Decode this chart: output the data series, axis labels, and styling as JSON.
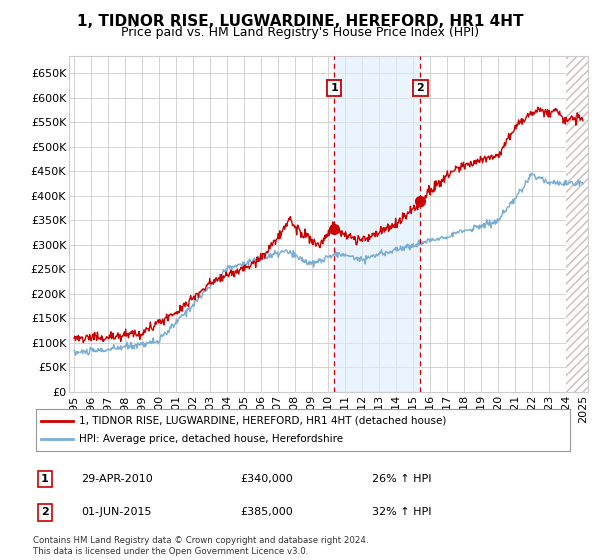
{
  "title": "1, TIDNOR RISE, LUGWARDINE, HEREFORD, HR1 4HT",
  "subtitle": "Price paid vs. HM Land Registry's House Price Index (HPI)",
  "yticks": [
    0,
    50000,
    100000,
    150000,
    200000,
    250000,
    300000,
    350000,
    400000,
    450000,
    500000,
    550000,
    600000,
    650000
  ],
  "ytick_labels": [
    "£0",
    "£50K",
    "£100K",
    "£150K",
    "£200K",
    "£250K",
    "£300K",
    "£350K",
    "£400K",
    "£450K",
    "£500K",
    "£550K",
    "£600K",
    "£650K"
  ],
  "ylim": [
    0,
    685000
  ],
  "xlim_start": 1994.7,
  "xlim_end": 2025.3,
  "xticks": [
    1995,
    1996,
    1997,
    1998,
    1999,
    2000,
    2001,
    2002,
    2003,
    2004,
    2005,
    2006,
    2007,
    2008,
    2009,
    2010,
    2011,
    2012,
    2013,
    2014,
    2015,
    2016,
    2017,
    2018,
    2019,
    2020,
    2021,
    2022,
    2023,
    2024,
    2025
  ],
  "property_color": "#cc0000",
  "hpi_color": "#7aaed4",
  "transaction1_date": 2010.33,
  "transaction1_price": 340000,
  "transaction1_label": "1",
  "transaction1_pct": "26%",
  "transaction1_date_str": "29-APR-2010",
  "transaction1_price_str": "£340,000",
  "transaction2_date": 2015.42,
  "transaction2_price": 385000,
  "transaction2_label": "2",
  "transaction2_pct": "32%",
  "transaction2_date_str": "01-JUN-2015",
  "transaction2_price_str": "£385,000",
  "legend_property": "1, TIDNOR RISE, LUGWARDINE, HEREFORD, HR1 4HT (detached house)",
  "legend_hpi": "HPI: Average price, detached house, Herefordshire",
  "footer1": "Contains HM Land Registry data © Crown copyright and database right 2024.",
  "footer2": "This data is licensed under the Open Government Licence v3.0.",
  "bg_shade_color": "#ddeeff",
  "hatch_color": "#ccbbbb",
  "grid_color": "#cccccc",
  "title_fontsize": 11,
  "subtitle_fontsize": 9,
  "tick_fontsize": 8,
  "hatch_start": 2024.0
}
